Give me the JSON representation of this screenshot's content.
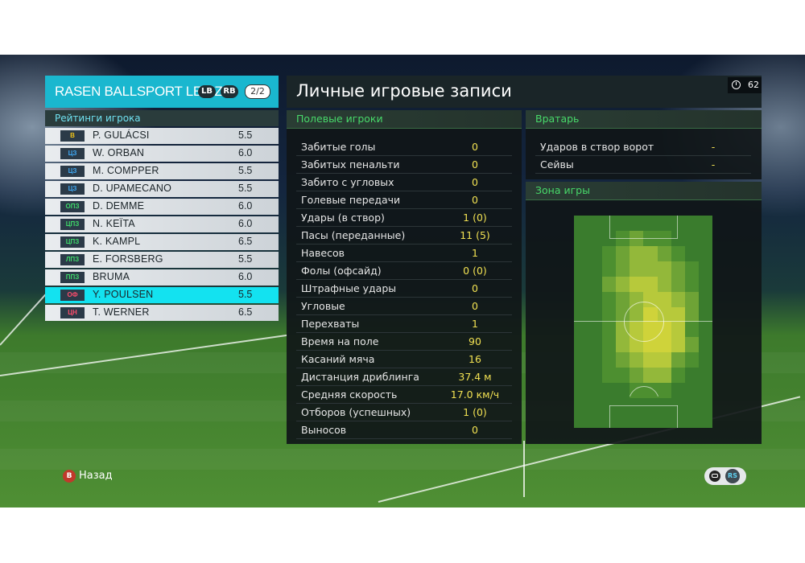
{
  "team": {
    "name": "RASEN BALLSPORT LEIPZIG",
    "lb": "LB",
    "rb": "RB",
    "page": "2/2"
  },
  "ratings_title": "Рейтинги игрока",
  "players": [
    {
      "pos": "В",
      "name": "P. GULÁCSI",
      "rating": "5.5",
      "pos_color": "#f0c419"
    },
    {
      "pos": "ЦЗ",
      "name": "W. ORBAN",
      "rating": "6.0",
      "pos_color": "#3fa9f5"
    },
    {
      "pos": "ЦЗ",
      "name": "M. COMPPER",
      "rating": "5.5",
      "pos_color": "#3fa9f5"
    },
    {
      "pos": "ЦЗ",
      "name": "D. UPAMECANO",
      "rating": "5.5",
      "pos_color": "#3fa9f5"
    },
    {
      "pos": "ОПЗ",
      "name": "D. DEMME",
      "rating": "6.0",
      "pos_color": "#3fd96a"
    },
    {
      "pos": "ЦПЗ",
      "name": "N. KEÏTA",
      "rating": "6.0",
      "pos_color": "#3fd96a"
    },
    {
      "pos": "ЦПЗ",
      "name": "K. KAMPL",
      "rating": "6.5",
      "pos_color": "#3fd96a"
    },
    {
      "pos": "ЛПЗ",
      "name": "E. FORSBERG",
      "rating": "5.5",
      "pos_color": "#3fd96a"
    },
    {
      "pos": "ППЗ",
      "name": "BRUMA",
      "rating": "6.0",
      "pos_color": "#3fd96a"
    },
    {
      "pos": "ОФ",
      "name": "Y. POULSEN",
      "rating": "5.5",
      "pos_color": "#ff4d6d"
    },
    {
      "pos": "ЦН",
      "name": "T. WERNER",
      "rating": "6.5",
      "pos_color": "#ff4d6d"
    }
  ],
  "selected_player_index": 9,
  "main_title": "Личные игровые записи",
  "timer": "62",
  "field_players_title": "Полевые игроки",
  "stats": [
    {
      "label": "Забитые голы",
      "value": "0"
    },
    {
      "label": "Забитых пенальти",
      "value": "0"
    },
    {
      "label": "Забито с угловых",
      "value": "0"
    },
    {
      "label": "Голевые передачи",
      "value": "0"
    },
    {
      "label": "Удары (в створ)",
      "value": "1 (0)"
    },
    {
      "label": "Пасы (переданные)",
      "value": "11 (5)"
    },
    {
      "label": "Навесов",
      "value": "1"
    },
    {
      "label": "Фолы (офсайд)",
      "value": "0 (0)"
    },
    {
      "label": "Штрафные удары",
      "value": "0"
    },
    {
      "label": "Угловые",
      "value": "0"
    },
    {
      "label": "Перехваты",
      "value": "1"
    },
    {
      "label": "Время на поле",
      "value": "90"
    },
    {
      "label": "Касаний мяча",
      "value": "16"
    },
    {
      "label": "Дистанция дриблинга",
      "value": "37.4 м"
    },
    {
      "label": "Средняя скорость",
      "value": "17.0 км/ч"
    },
    {
      "label": "Отборов (успешных)",
      "value": "1 (0)"
    },
    {
      "label": "Выносов",
      "value": "0"
    }
  ],
  "goalkeeper_title": "Вратарь",
  "gk_stats": [
    {
      "label": "Ударов в створ ворот",
      "value": "-"
    },
    {
      "label": "Сейвы",
      "value": "-"
    }
  ],
  "zone_title": "Зона игры",
  "footer": {
    "back_button": "B",
    "back_label": "Назад",
    "rs_label": "RS"
  },
  "colors": {
    "accent_cyan": "#1ab7cf",
    "selected_row": "#13e2f0",
    "section_green": "#48d96a",
    "value_yellow": "#f0e052"
  }
}
